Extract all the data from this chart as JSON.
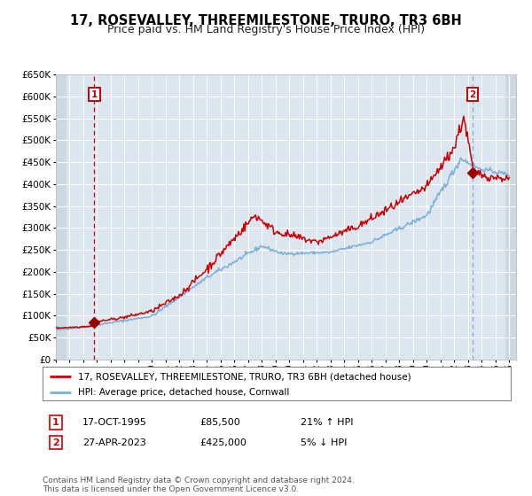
{
  "title": "17, ROSEVALLEY, THREEMILESTONE, TRURO, TR3 6BH",
  "subtitle": "Price paid vs. HM Land Registry's House Price Index (HPI)",
  "legend_line1": "17, ROSEVALLEY, THREEMILESTONE, TRURO, TR3 6BH (detached house)",
  "legend_line2": "HPI: Average price, detached house, Cornwall",
  "annotation1_label": "1",
  "annotation1_date": "17-OCT-1995",
  "annotation1_price": "£85,500",
  "annotation1_hpi": "21% ↑ HPI",
  "annotation2_label": "2",
  "annotation2_date": "27-APR-2023",
  "annotation2_price": "£425,000",
  "annotation2_hpi": "5% ↓ HPI",
  "footer": "Contains HM Land Registry data © Crown copyright and database right 2024.\nThis data is licensed under the Open Government Licence v3.0.",
  "bg_color": "#dce6f1",
  "outer_bg_color": "#ffffff",
  "hpi_color": "#7bafd4",
  "price_color": "#cc0000",
  "marker_color": "#990000",
  "vline1_color": "#cc0000",
  "vline2_color": "#7bafd4",
  "hatch_color": "#c8d4e0",
  "ylim": [
    0,
    650000
  ],
  "xlim_start": 1993.0,
  "xlim_end": 2026.5,
  "point1_x": 1995.8,
  "point1_y": 85500,
  "point2_x": 2023.33,
  "point2_y": 425000,
  "title_fontsize": 10.5,
  "subtitle_fontsize": 9,
  "tick_fontsize": 7,
  "ytick_fontsize": 7.5,
  "legend_fontsize": 7.5,
  "ann_fontsize": 8,
  "footer_fontsize": 6.5
}
